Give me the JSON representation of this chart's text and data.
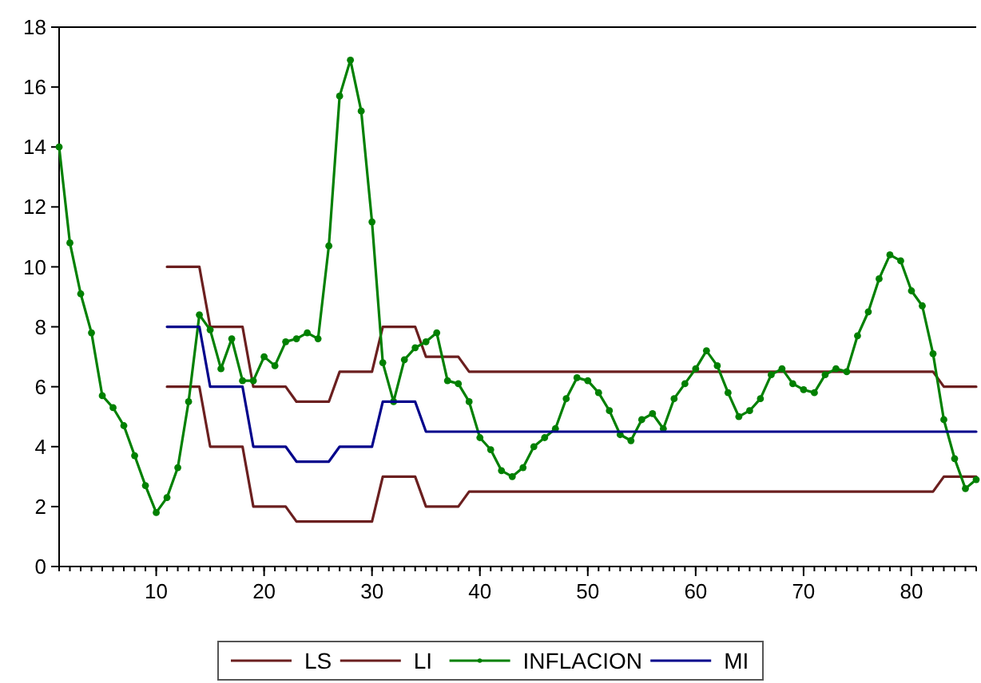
{
  "chart_data": {
    "type": "line",
    "xlim": [
      1,
      86
    ],
    "xticks": [
      10,
      20,
      30,
      40,
      50,
      60,
      70,
      80
    ],
    "ylim": [
      0,
      18
    ],
    "yticks": [
      0,
      2,
      4,
      6,
      8,
      10,
      12,
      14,
      16,
      18
    ],
    "grid": false,
    "legend": "bottom",
    "line_style": "solid",
    "x": [
      1,
      2,
      3,
      4,
      5,
      6,
      7,
      8,
      9,
      10,
      11,
      12,
      13,
      14,
      15,
      16,
      17,
      18,
      19,
      20,
      21,
      22,
      23,
      24,
      25,
      26,
      27,
      28,
      29,
      30,
      31,
      32,
      33,
      34,
      35,
      36,
      37,
      38,
      39,
      40,
      41,
      42,
      43,
      44,
      45,
      46,
      47,
      48,
      49,
      50,
      51,
      52,
      53,
      54,
      55,
      56,
      57,
      58,
      59,
      60,
      61,
      62,
      63,
      64,
      65,
      66,
      67,
      68,
      69,
      70,
      71,
      72,
      73,
      74,
      75,
      76,
      77,
      78,
      79,
      80,
      81,
      82,
      83,
      84,
      85,
      86
    ],
    "series": [
      {
        "name": "LS",
        "color": "#6b1f1f",
        "marker": "none",
        "values": [
          null,
          null,
          null,
          null,
          null,
          null,
          null,
          null,
          null,
          null,
          10,
          10,
          10,
          10,
          8,
          8,
          8,
          8,
          6,
          6,
          6,
          6,
          5.5,
          5.5,
          5.5,
          5.5,
          6.5,
          6.5,
          6.5,
          6.5,
          8,
          8,
          8,
          8,
          7,
          7,
          7,
          7,
          6.5,
          6.5,
          6.5,
          6.5,
          6.5,
          6.5,
          6.5,
          6.5,
          6.5,
          6.5,
          6.5,
          6.5,
          6.5,
          6.5,
          6.5,
          6.5,
          6.5,
          6.5,
          6.5,
          6.5,
          6.5,
          6.5,
          6.5,
          6.5,
          6.5,
          6.5,
          6.5,
          6.5,
          6.5,
          6.5,
          6.5,
          6.5,
          6.5,
          6.5,
          6.5,
          6.5,
          6.5,
          6.5,
          6.5,
          6.5,
          6.5,
          6.5,
          6.5,
          6.5,
          6,
          6,
          6,
          6
        ]
      },
      {
        "name": "LI",
        "color": "#6b1f1f",
        "marker": "none",
        "values": [
          null,
          null,
          null,
          null,
          null,
          null,
          null,
          null,
          null,
          null,
          6,
          6,
          6,
          6,
          4,
          4,
          4,
          4,
          2,
          2,
          2,
          2,
          1.5,
          1.5,
          1.5,
          1.5,
          1.5,
          1.5,
          1.5,
          1.5,
          3,
          3,
          3,
          3,
          2,
          2,
          2,
          2,
          2.5,
          2.5,
          2.5,
          2.5,
          2.5,
          2.5,
          2.5,
          2.5,
          2.5,
          2.5,
          2.5,
          2.5,
          2.5,
          2.5,
          2.5,
          2.5,
          2.5,
          2.5,
          2.5,
          2.5,
          2.5,
          2.5,
          2.5,
          2.5,
          2.5,
          2.5,
          2.5,
          2.5,
          2.5,
          2.5,
          2.5,
          2.5,
          2.5,
          2.5,
          2.5,
          2.5,
          2.5,
          2.5,
          2.5,
          2.5,
          2.5,
          2.5,
          2.5,
          2.5,
          3,
          3,
          3,
          3
        ]
      },
      {
        "name": "INFLACION",
        "color": "#008000",
        "marker": "circle",
        "values": [
          14,
          10.8,
          9.1,
          7.8,
          5.7,
          5.3,
          4.7,
          3.7,
          2.7,
          1.8,
          2.3,
          3.3,
          5.5,
          8.4,
          7.9,
          6.6,
          7.6,
          6.2,
          6.2,
          7,
          6.7,
          7.5,
          7.6,
          7.8,
          7.6,
          10.7,
          15.7,
          16.9,
          15.2,
          11.5,
          6.8,
          5.5,
          6.9,
          7.3,
          7.5,
          7.8,
          6.2,
          6.1,
          5.5,
          4.3,
          3.9,
          3.2,
          3,
          3.3,
          4,
          4.3,
          4.6,
          5.6,
          6.3,
          6.2,
          5.8,
          5.2,
          4.4,
          4.2,
          4.9,
          5.1,
          4.6,
          5.6,
          6.1,
          6.6,
          7.2,
          6.7,
          5.8,
          5,
          5.2,
          5.6,
          6.4,
          6.6,
          6.1,
          5.9,
          5.8,
          6.4,
          6.6,
          6.5,
          7.7,
          8.5,
          9.6,
          10.4,
          10.2,
          9.2,
          8.7,
          7.1,
          4.9,
          3.6,
          2.6,
          2.9
        ]
      },
      {
        "name": "MI",
        "color": "#00008b",
        "marker": "none",
        "values": [
          null,
          null,
          null,
          null,
          null,
          null,
          null,
          null,
          null,
          null,
          8,
          8,
          8,
          8,
          6,
          6,
          6,
          6,
          4,
          4,
          4,
          4,
          3.5,
          3.5,
          3.5,
          3.5,
          4,
          4,
          4,
          4,
          5.5,
          5.5,
          5.5,
          5.5,
          4.5,
          4.5,
          4.5,
          4.5,
          4.5,
          4.5,
          4.5,
          4.5,
          4.5,
          4.5,
          4.5,
          4.5,
          4.5,
          4.5,
          4.5,
          4.5,
          4.5,
          4.5,
          4.5,
          4.5,
          4.5,
          4.5,
          4.5,
          4.5,
          4.5,
          4.5,
          4.5,
          4.5,
          4.5,
          4.5,
          4.5,
          4.5,
          4.5,
          4.5,
          4.5,
          4.5,
          4.5,
          4.5,
          4.5,
          4.5,
          4.5,
          4.5,
          4.5,
          4.5,
          4.5,
          4.5,
          4.5,
          4.5,
          4.5,
          4.5,
          4.5,
          4.5
        ]
      }
    ]
  }
}
